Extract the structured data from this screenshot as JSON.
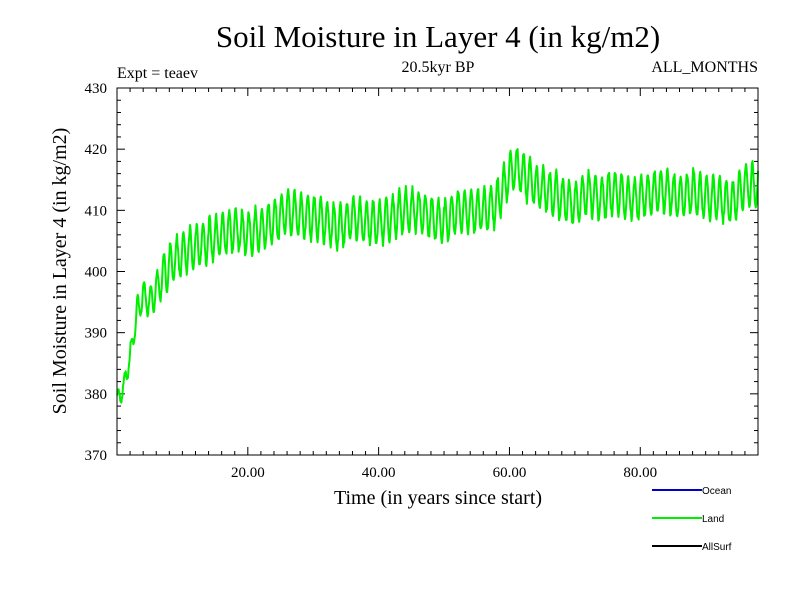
{
  "chart_data": {
    "type": "line",
    "title": "Soil Moisture in Layer 4 (in kg/m2)",
    "subtitle_left": "Expt = teaev",
    "subtitle_center": "20.5kyr BP",
    "subtitle_right": "ALL_MONTHS",
    "xlabel": "Time (in years since start)",
    "ylabel": "Soil Moisture in Layer 4 (in kg/m2)",
    "xlim": [
      0,
      98
    ],
    "ylim": [
      370,
      430
    ],
    "x_ticks": [
      20,
      40,
      60,
      80
    ],
    "x_tick_labels": [
      "20.00",
      "40.00",
      "60.00",
      "80.00"
    ],
    "y_ticks": [
      370,
      380,
      390,
      400,
      410,
      420,
      430
    ],
    "y_tick_labels": [
      "370",
      "380",
      "390",
      "400",
      "410",
      "420",
      "430"
    ],
    "legend_position": "bottom-right",
    "legend": [
      {
        "name": "Ocean",
        "color": "#0000cc"
      },
      {
        "name": "Land",
        "color": "#00ee00"
      },
      {
        "name": "AllSurf",
        "color": "#000000"
      }
    ],
    "series": [
      {
        "name": "Land",
        "color": "#00ee00",
        "seasonal_amplitude": 3.5,
        "x": [
          0,
          0.5,
          1,
          2,
          3,
          4,
          5,
          6,
          8,
          10,
          12,
          14,
          16,
          18,
          20,
          22,
          24,
          26,
          28,
          30,
          32,
          34,
          36,
          38,
          40,
          42,
          44,
          46,
          48,
          50,
          52,
          54,
          56,
          58,
          60,
          61,
          62,
          64,
          66,
          68,
          70,
          72,
          74,
          76,
          78,
          80,
          82,
          84,
          86,
          88,
          90,
          92,
          94,
          96,
          98
        ],
        "values": [
          379,
          380,
          381,
          386,
          393,
          396,
          395,
          397,
          401,
          403,
          404,
          405,
          406,
          407,
          406,
          407,
          408,
          410,
          409,
          409,
          408,
          407,
          409,
          408,
          408,
          409,
          410,
          410,
          409,
          408,
          410,
          410,
          410,
          411,
          416,
          417,
          416,
          414,
          413,
          412,
          411,
          413,
          412,
          413,
          412,
          412,
          413,
          413,
          412,
          413,
          412,
          412,
          411,
          414,
          414
        ]
      }
    ]
  }
}
